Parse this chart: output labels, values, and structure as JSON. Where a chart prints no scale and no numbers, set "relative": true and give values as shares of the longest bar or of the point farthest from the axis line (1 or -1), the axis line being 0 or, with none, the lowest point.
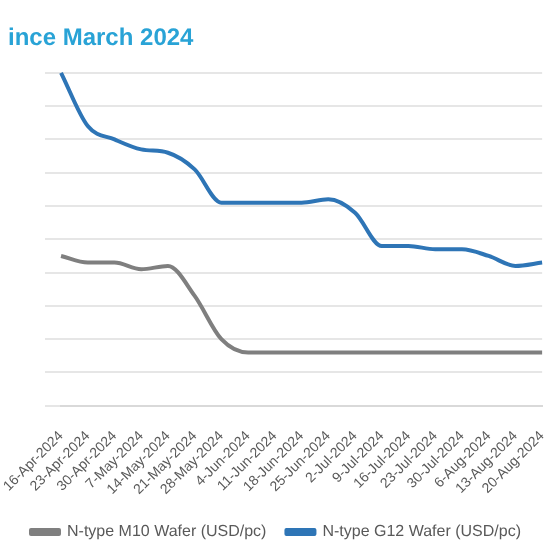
{
  "chart_data": {
    "type": "line",
    "title": "ince March 2024",
    "relative": true,
    "grid": "y",
    "legend": "bottom",
    "marker": "none",
    "line_style": "solid",
    "categories": [
      "16-Apr-2024",
      "23-Apr-2024",
      "30-Apr-2024",
      "7-May-2024",
      "14-May-2024",
      "21-May-2024",
      "28-May-2024",
      "4-Jun-2024",
      "11-Jun-2024",
      "18-Jun-2024",
      "25-Jun-2024",
      "2-Jul-2024",
      "9-Jul-2024",
      "16-Jul-2024",
      "23-Jul-2024",
      "30-Jul-2024",
      "6-Aug-2024",
      "13-Aug-2024",
      "20-Aug-2024"
    ],
    "series": [
      {
        "name": "N-type M10 Wafer (USD/pc)",
        "color": "#7f7f7f",
        "values": [
          0.45,
          0.43,
          0.43,
          0.41,
          0.42,
          0.33,
          0.2,
          0.16,
          0.16,
          0.16,
          0.16,
          0.16,
          0.16,
          0.16,
          0.16,
          0.16,
          0.16,
          0.16,
          0.16
        ]
      },
      {
        "name": "N-type G12 Wafer (USD/pc)",
        "color": "#2e75b6",
        "values": [
          1,
          0.84,
          0.8,
          0.77,
          0.76,
          0.71,
          0.61,
          0.61,
          0.61,
          0.61,
          0.62,
          0.58,
          0.48,
          0.48,
          0.47,
          0.47,
          0.45,
          0.42,
          0.43
        ]
      }
    ]
  }
}
